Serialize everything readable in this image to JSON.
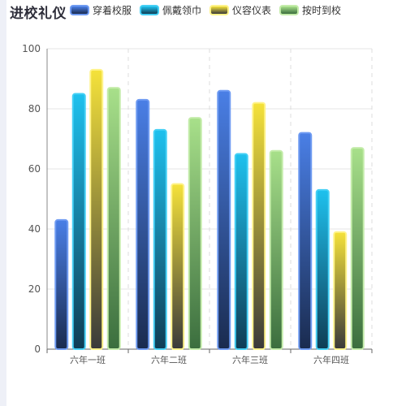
{
  "chart_data": {
    "type": "bar",
    "title": "进校礼仪",
    "categories": [
      "六年一班",
      "六年二班",
      "六年三班",
      "六年四班"
    ],
    "series": [
      {
        "name": "穿着校服",
        "values": [
          43,
          83,
          86,
          72
        ]
      },
      {
        "name": "佩戴领巾",
        "values": [
          85,
          73,
          65,
          53
        ]
      },
      {
        "name": "仪容仪表",
        "values": [
          93,
          55,
          82,
          39
        ]
      },
      {
        "name": "按时到校",
        "values": [
          87,
          77,
          66,
          67
        ]
      }
    ],
    "ylim": [
      0,
      100
    ],
    "yticks": [
      0,
      20,
      40,
      60,
      80,
      100
    ],
    "grid": true,
    "legend_position": "top"
  },
  "series_colors": [
    {
      "top": "#4a7fe6",
      "bottom": "#1a2b4f",
      "border": "#6f9bf2"
    },
    {
      "top": "#1ec1ee",
      "bottom": "#0f3d55",
      "border": "#45d0f5"
    },
    {
      "top": "#f5e23a",
      "bottom": "#3a3a3a",
      "border": "#fff38a"
    },
    {
      "top": "#a8e08a",
      "bottom": "#3b6e3e",
      "border": "#c4ecaa"
    }
  ]
}
